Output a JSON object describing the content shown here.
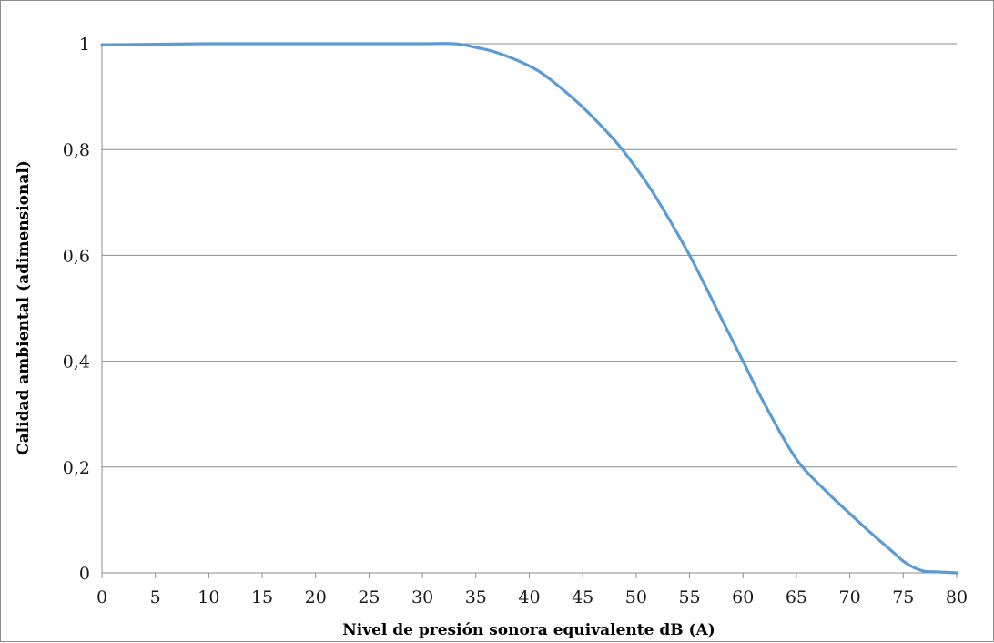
{
  "chart_data": {
    "type": "line",
    "xlabel": "Nivel de presión sonora equivalente dB (A)",
    "ylabel": "Calidad ambiental (adimensional)",
    "xlim": [
      0,
      80
    ],
    "ylim": [
      0,
      1
    ],
    "x_ticks": [
      "0",
      "5",
      "10",
      "15",
      "20",
      "25",
      "30",
      "35",
      "40",
      "45",
      "50",
      "55",
      "60",
      "65",
      "70",
      "75",
      "80"
    ],
    "y_ticks": [
      "0",
      "0,2",
      "0,4",
      "0,6",
      "0,8",
      "1"
    ],
    "grid": "horizontal",
    "legend": "none",
    "series": [
      {
        "color": "#5b9bd5",
        "x": [
          0,
          5,
          10,
          15,
          20,
          25,
          30,
          33,
          35,
          37,
          40,
          42,
          45,
          48,
          50,
          52,
          55,
          58,
          60,
          62,
          65,
          68,
          70,
          72,
          74,
          75,
          76,
          77,
          78,
          79,
          80
        ],
        "y": [
          0.998,
          0.999,
          1.0,
          1.0,
          1.0,
          1.0,
          1.0,
          1.0,
          0.993,
          0.983,
          0.958,
          0.932,
          0.88,
          0.817,
          0.765,
          0.705,
          0.6,
          0.48,
          0.4,
          0.32,
          0.215,
          0.15,
          0.112,
          0.075,
          0.04,
          0.022,
          0.01,
          0.003,
          0.002,
          0.001,
          0.0
        ]
      }
    ]
  }
}
